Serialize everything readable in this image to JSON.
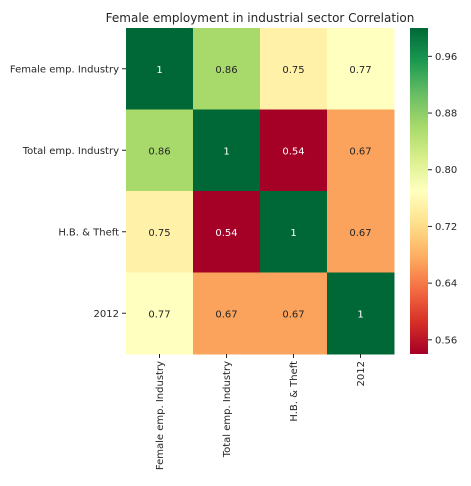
{
  "chart_data": {
    "type": "heatmap",
    "title": "Female employment in industrial sector Correlation",
    "row_labels": [
      "Female emp. Industry",
      "Total emp. Industry",
      "H.B. & Theft",
      "2012"
    ],
    "col_labels": [
      "Female emp. Industry",
      "Total emp. Industry",
      "H.B. & Theft",
      "2012"
    ],
    "values": [
      [
        1,
        0.86,
        0.75,
        0.77
      ],
      [
        0.86,
        1,
        0.54,
        0.67
      ],
      [
        0.75,
        0.54,
        1,
        0.67
      ],
      [
        0.77,
        0.67,
        0.67,
        1
      ]
    ],
    "cell_labels": [
      [
        "1",
        "0.86",
        "0.75",
        "0.77"
      ],
      [
        "0.86",
        "1",
        "0.54",
        "0.67"
      ],
      [
        "0.75",
        "0.54",
        "1",
        "0.67"
      ],
      [
        "0.77",
        "0.67",
        "0.67",
        "1"
      ]
    ],
    "colormap": "RdYlGn",
    "vmin": 0.54,
    "vmax": 1,
    "colorbar_ticks": [
      "0.56",
      "0.64",
      "0.72",
      "0.80",
      "0.88",
      "0.96"
    ]
  }
}
